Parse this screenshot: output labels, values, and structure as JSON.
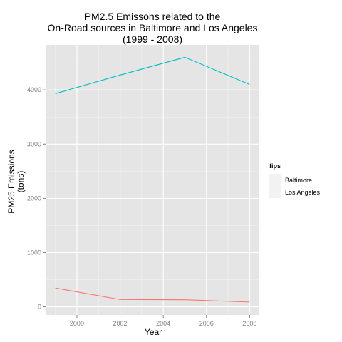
{
  "chart_data": {
    "type": "line",
    "title_lines": [
      "PM2.5 Emissons related to the",
      "On-Road sources in Baltimore and Los Angeles",
      "(1999 - 2008)"
    ],
    "xlabel": "Year",
    "ylabel_lines": [
      "PM25 Emissions",
      "(tons)"
    ],
    "x": [
      1999,
      2002,
      2005,
      2008
    ],
    "xlim": [
      1998.55,
      2008.45
    ],
    "ylim": [
      -150,
      4830
    ],
    "xticks": [
      2000,
      2002,
      2004,
      2006,
      2008
    ],
    "yticks": [
      0,
      1000,
      2000,
      3000,
      4000
    ],
    "grid": true,
    "legend": {
      "title": "fips",
      "placement": "right"
    },
    "series": [
      {
        "name": "Baltimore",
        "color": "#f8766d",
        "values": [
          346.82,
          134.31,
          130.43,
          88.28
        ]
      },
      {
        "name": "Los Angeles",
        "color": "#00bfc4",
        "values": [
          3931.12,
          4274.03,
          4601.41,
          4101.32
        ]
      }
    ]
  }
}
